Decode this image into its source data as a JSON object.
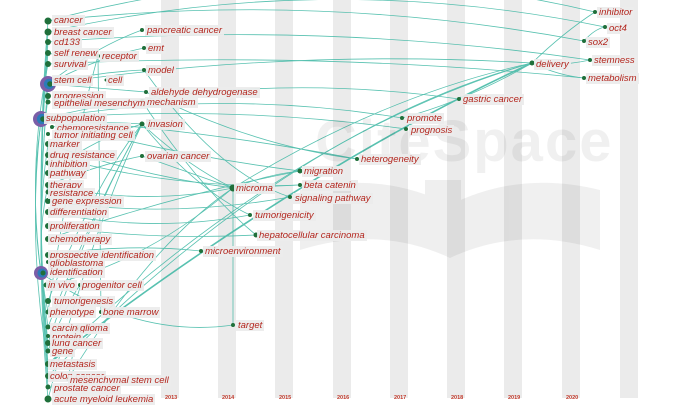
{
  "watermark": "CiteSpace",
  "years": [
    "2013",
    "2014",
    "2015",
    "2016",
    "2017",
    "2018",
    "2019",
    "2020"
  ],
  "colors": {
    "link": "#3bb7a3",
    "label": "#b3261e",
    "label_bg": "#ececec",
    "node_outer": "#7b5ea7",
    "node_inner": "#1f6f3a"
  },
  "keywords": [
    {
      "text": "cancer",
      "year": "2012"
    },
    {
      "text": "breast cancer",
      "year": "2012"
    },
    {
      "text": "cd133",
      "year": "2012"
    },
    {
      "text": "self renew",
      "year": "2012"
    },
    {
      "text": "survival",
      "year": "2012"
    },
    {
      "text": "stem cell",
      "year": "2012"
    },
    {
      "text": "cell",
      "year": "2012"
    },
    {
      "text": "progression",
      "year": "2012"
    },
    {
      "text": "epithelial mesenchym",
      "year": "2012"
    },
    {
      "text": "subpopulation",
      "year": "2012"
    },
    {
      "text": "chemoresistance",
      "year": "2012"
    },
    {
      "text": "tumor initiating cell",
      "year": "2012"
    },
    {
      "text": "marker",
      "year": "2012"
    },
    {
      "text": "drug resistance",
      "year": "2012"
    },
    {
      "text": "inhibition",
      "year": "2012"
    },
    {
      "text": "pathway",
      "year": "2012"
    },
    {
      "text": "therapy",
      "year": "2012"
    },
    {
      "text": "resistance",
      "year": "2012"
    },
    {
      "text": "gene expression",
      "year": "2012"
    },
    {
      "text": "differentiation",
      "year": "2012"
    },
    {
      "text": "proliferation",
      "year": "2012"
    },
    {
      "text": "chemotherapy",
      "year": "2012"
    },
    {
      "text": "prospective identification",
      "year": "2012"
    },
    {
      "text": "glioblastoma",
      "year": "2012"
    },
    {
      "text": "identification",
      "year": "2012"
    },
    {
      "text": "in vivo",
      "year": "2012"
    },
    {
      "text": "progenitor cell",
      "year": "2012"
    },
    {
      "text": "tumorigenesis",
      "year": "2012"
    },
    {
      "text": "phenotype",
      "year": "2012"
    },
    {
      "text": "bone marrow",
      "year": "2012"
    },
    {
      "text": "carcinoma",
      "year": "2012"
    },
    {
      "text": "glioma",
      "year": "2012"
    },
    {
      "text": "protein",
      "year": "2012"
    },
    {
      "text": "lung cancer",
      "year": "2012"
    },
    {
      "text": "gene",
      "year": "2012"
    },
    {
      "text": "metastasis",
      "year": "2012"
    },
    {
      "text": "colon cancer",
      "year": "2012"
    },
    {
      "text": "mesenchymal stem cell",
      "year": "2012"
    },
    {
      "text": "prostate cancer",
      "year": "2012"
    },
    {
      "text": "acute myeloid leukemia",
      "year": "2012"
    },
    {
      "text": "pancreatic cancer",
      "year": "2013"
    },
    {
      "text": "emt",
      "year": "2013"
    },
    {
      "text": "receptor",
      "year": "2013"
    },
    {
      "text": "model",
      "year": "2013"
    },
    {
      "text": "aldehyde dehydrogenase",
      "year": "2013"
    },
    {
      "text": "mechanism",
      "year": "2013"
    },
    {
      "text": "invasion",
      "year": "2013"
    },
    {
      "text": "ovarian cancer",
      "year": "2013"
    },
    {
      "text": "microenvironment",
      "year": "2014"
    },
    {
      "text": "microrna",
      "year": "2014"
    },
    {
      "text": "target",
      "year": "2014"
    },
    {
      "text": "tumorigenicity",
      "year": "2015"
    },
    {
      "text": "hepatocellular carcinoma",
      "year": "2015"
    },
    {
      "text": "migration",
      "year": "2015"
    },
    {
      "text": "beta catenin",
      "year": "2015"
    },
    {
      "text": "signaling pathway",
      "year": "2015"
    },
    {
      "text": "heterogeneity",
      "year": "2016"
    },
    {
      "text": "promote",
      "year": "2017"
    },
    {
      "text": "prognosis",
      "year": "2017"
    },
    {
      "text": "gastric cancer",
      "year": "2018"
    },
    {
      "text": "delivery",
      "year": "2019"
    },
    {
      "text": "inhibitor",
      "year": "2020"
    },
    {
      "text": "oct4",
      "year": "2020"
    },
    {
      "text": "sox2",
      "year": "2020"
    },
    {
      "text": "stemness",
      "year": "2020"
    },
    {
      "text": "metabolism",
      "year": "2020"
    }
  ]
}
